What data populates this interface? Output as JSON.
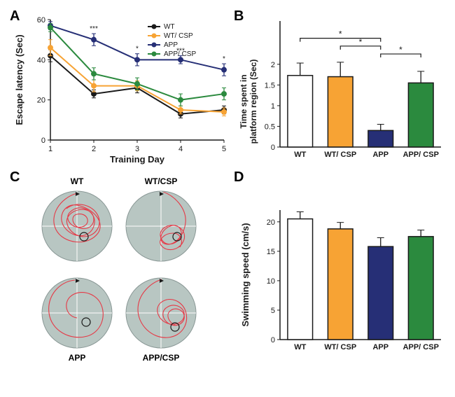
{
  "panels": {
    "A": "A",
    "B": "B",
    "C": "C",
    "D": "D"
  },
  "colors": {
    "WT": "#1a1a1a",
    "WT_CSP": "#f7a334",
    "APP": "#262f76",
    "APP_CSP": "#2b8a3e",
    "white_fill": "#ffffff",
    "axis": "#1a1a1a",
    "path": "#e63946",
    "pool_fill": "#b8c6c2",
    "pool_edge": "#8a9896"
  },
  "A": {
    "title": "",
    "xlabel": "Training Day",
    "ylabel": "Escape latency (Sec)",
    "xticks": [
      1,
      2,
      3,
      4,
      5
    ],
    "yticks": [
      0,
      20,
      40,
      60
    ],
    "ylim": [
      0,
      60
    ],
    "label_fontsize": 13,
    "tick_fontsize": 11,
    "legend": [
      "WT",
      "WT/ CSP",
      "APP",
      "APP/ CSP"
    ],
    "series": {
      "WT": {
        "y": [
          42,
          23,
          26,
          13,
          15
        ],
        "err": [
          3,
          2,
          2.5,
          2,
          2
        ],
        "color": "#1a1a1a"
      },
      "WT_CSP": {
        "y": [
          46,
          27,
          27,
          15,
          14
        ],
        "err": [
          4,
          3,
          2.5,
          2,
          2
        ],
        "color": "#f7a334"
      },
      "APP": {
        "y": [
          57,
          50,
          40,
          40,
          35
        ],
        "err": [
          2,
          3,
          3,
          2,
          3
        ],
        "color": "#262f76"
      },
      "APP_CSP": {
        "y": [
          56,
          33,
          28,
          20,
          23
        ],
        "err": [
          2,
          3,
          3,
          3,
          3
        ],
        "color": "#2b8a3e"
      }
    },
    "sig": [
      {
        "x": 2,
        "above": "APP",
        "label": "***"
      },
      {
        "x": 3,
        "above": "APP",
        "label": "*"
      },
      {
        "x": 4,
        "above": "APP",
        "label": "***"
      },
      {
        "x": 5,
        "above": "APP",
        "label": "*"
      }
    ]
  },
  "B": {
    "ylabel_line1": "Time spent in",
    "ylabel_line2": "platform region (Sec)",
    "categories": [
      "WT",
      "WT/ CSP",
      "APP",
      "APP/ CSP"
    ],
    "values": [
      1.73,
      1.7,
      0.4,
      1.55
    ],
    "errors": [
      0.3,
      0.35,
      0.15,
      0.28
    ],
    "fill_colors": [
      "#ffffff",
      "#f7a334",
      "#262f76",
      "#2b8a3e"
    ],
    "stroke_colors": [
      "#1a1a1a",
      "#1a1a1a",
      "#1a1a1a",
      "#1a1a1a"
    ],
    "yticks": [
      0.0,
      0.5,
      1.0,
      1.5,
      2.0
    ],
    "ylim": [
      0,
      2.2
    ],
    "label_fontsize": 12,
    "tick_fontsize": 11,
    "sig_brackets": [
      {
        "i": 0,
        "j": 2,
        "y": 2.63,
        "label": "*"
      },
      {
        "i": 1,
        "j": 2,
        "y": 2.44,
        "label": "*"
      },
      {
        "i": 2,
        "j": 3,
        "y": 2.25,
        "label": "*"
      }
    ]
  },
  "C": {
    "labels": [
      "WT",
      "WT/CSP",
      "APP",
      "APP/CSP"
    ]
  },
  "D": {
    "ylabel": "Swimming speed (cm/s)",
    "categories": [
      "WT",
      "WT/ CSP",
      "APP",
      "APP/ CSP"
    ],
    "values": [
      20.5,
      18.8,
      15.8,
      17.5
    ],
    "errors": [
      1.2,
      1.1,
      1.5,
      1.1
    ],
    "fill_colors": [
      "#ffffff",
      "#f7a334",
      "#262f76",
      "#2b8a3e"
    ],
    "stroke_colors": [
      "#1a1a1a",
      "#1a1a1a",
      "#1a1a1a",
      "#1a1a1a"
    ],
    "yticks": [
      0,
      5,
      10,
      15,
      20
    ],
    "ylim": [
      0,
      22
    ],
    "label_fontsize": 13,
    "tick_fontsize": 11
  }
}
